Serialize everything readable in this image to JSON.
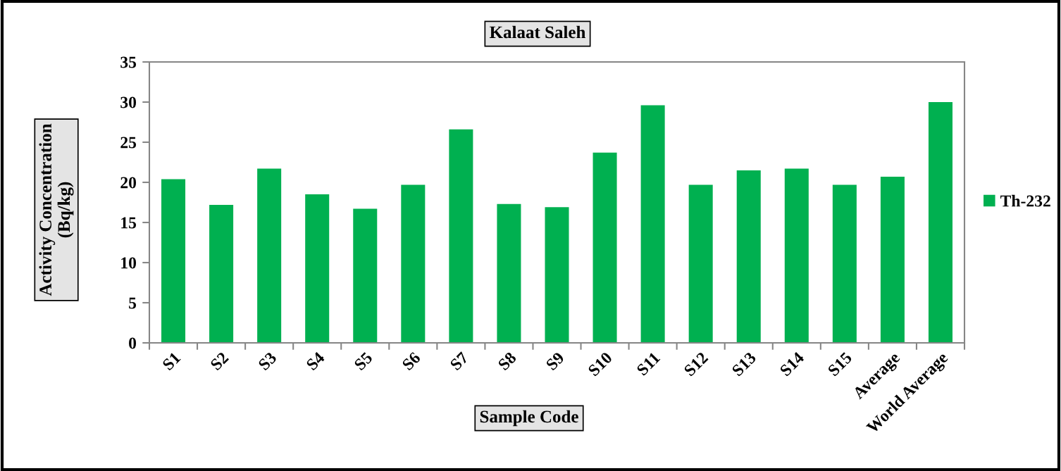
{
  "chart_data": {
    "type": "bar",
    "title": "Kalaat Saleh",
    "xlabel": "Sample Code",
    "ylabel": "Activity Concentration\n(Bq/kg)",
    "categories": [
      "S1",
      "S2",
      "S3",
      "S4",
      "S5",
      "S6",
      "S7",
      "S8",
      "S9",
      "S10",
      "S11",
      "S12",
      "S13",
      "S14",
      "S15",
      "Average",
      "World Average"
    ],
    "series": [
      {
        "name": "Th-232",
        "color": "#00b050",
        "values": [
          20.4,
          17.2,
          21.7,
          18.5,
          16.7,
          19.7,
          26.6,
          17.3,
          16.9,
          23.7,
          29.6,
          19.7,
          21.5,
          21.7,
          19.7,
          20.7,
          30
        ]
      }
    ],
    "ylim": [
      0,
      35
    ],
    "yticks": [
      0,
      5,
      10,
      15,
      20,
      25,
      30,
      35
    ],
    "legend": "right"
  }
}
